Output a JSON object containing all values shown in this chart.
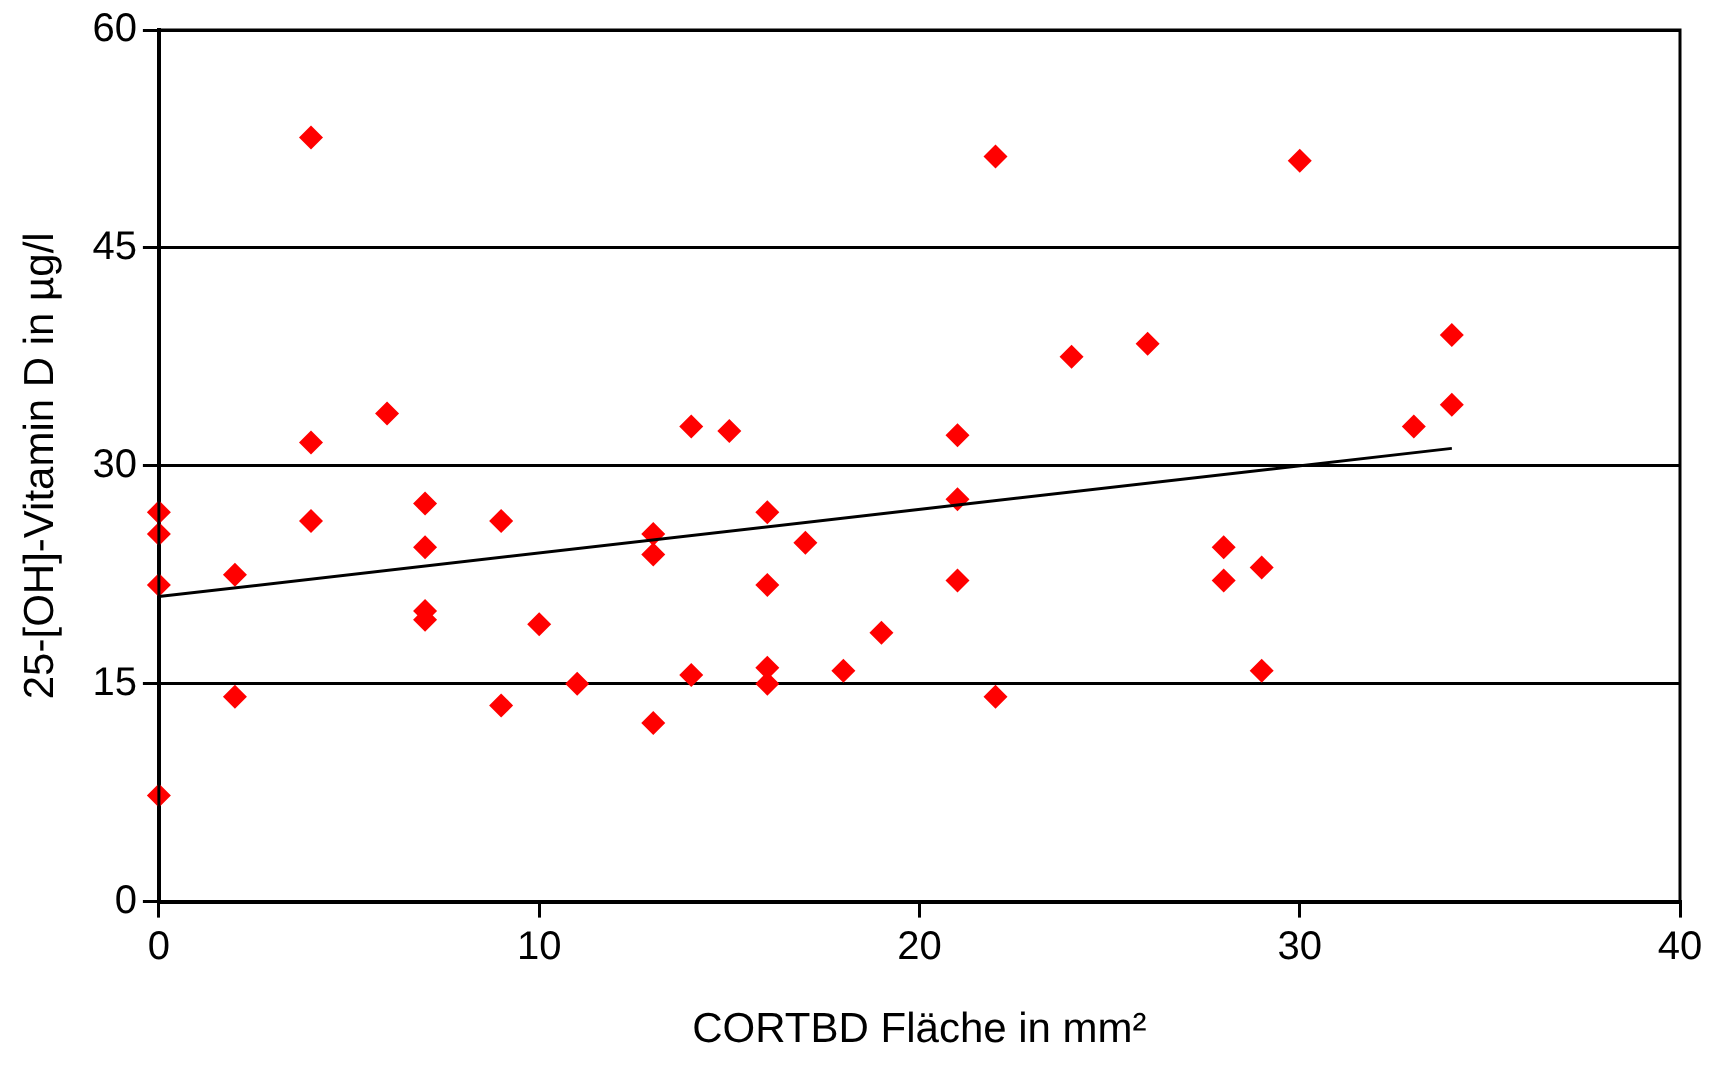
{
  "chart_data": {
    "type": "scatter",
    "xlabel": "CORTBD Fläche in mm²",
    "ylabel": "25-[OH]-Vitamin D in µg/l",
    "xlim": [
      0,
      40
    ],
    "xticks": [
      0,
      10,
      20,
      30,
      40
    ],
    "ylim": [
      0,
      60
    ],
    "yticks": [
      0,
      15,
      30,
      45,
      60
    ],
    "grid": "y",
    "marker": "diamond",
    "series": [
      {
        "color": "#ff0000",
        "x": [
          0,
          0,
          0,
          0,
          2,
          2,
          4,
          4,
          4,
          6,
          7,
          7,
          7,
          7,
          9,
          9,
          10,
          11,
          13,
          13,
          13,
          14,
          14,
          15,
          16,
          16,
          16,
          16,
          17,
          18,
          19,
          21,
          21,
          21,
          22,
          22,
          24,
          26,
          28,
          28,
          29,
          29,
          30,
          33,
          34,
          34
        ],
        "values": [
          26.8,
          25.3,
          21.8,
          7.3,
          22.5,
          14.1,
          52.6,
          31.6,
          26.2,
          33.6,
          27.4,
          24.4,
          20,
          19.4,
          26.2,
          13.5,
          19.1,
          15,
          25.3,
          23.9,
          12.3,
          32.7,
          15.6,
          32.4,
          26.8,
          21.8,
          16.1,
          15,
          24.7,
          15.9,
          18.5,
          32.1,
          27.7,
          22.1,
          51.3,
          14.1,
          37.5,
          38.4,
          24.4,
          22.1,
          23,
          15.9,
          51,
          32.7,
          39,
          34.2
        ]
      },
      {
        "type": "line",
        "color": "#000000",
        "x": [
          0,
          34
        ],
        "values": [
          21,
          31.2
        ],
        "marker": "none"
      }
    ]
  }
}
